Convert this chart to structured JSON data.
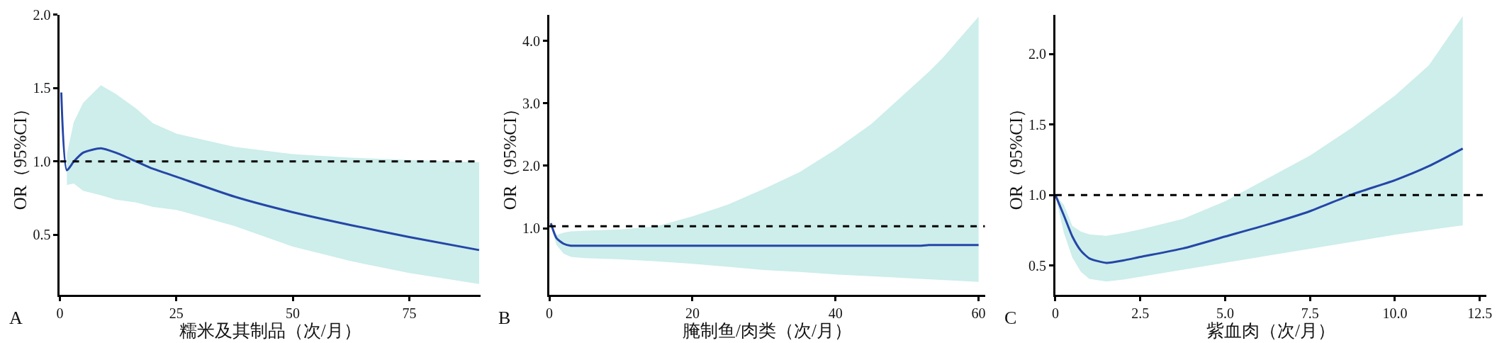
{
  "chart_data": [
    {
      "type": "line",
      "xlabel": "糯米及其制品（次/月）",
      "ylabel": "OR（95%CI）",
      "annotations": [
        "A"
      ],
      "xlim": [
        0,
        90.3
      ],
      "xticks": [
        0,
        25,
        50,
        75
      ],
      "ylim": [
        0.09,
        2.0
      ],
      "yticks": [
        {
          "value": 0.5,
          "label": "0.5"
        },
        {
          "value": 1.0,
          "label": "1.0"
        },
        {
          "value": 1.5,
          "label": "1.5"
        },
        {
          "value": 2.0,
          "label": "2.0"
        }
      ],
      "marker": "none",
      "line_style": "solid",
      "ref_lines": [
        {
          "axis": "y",
          "value": 1.0,
          "color": "#000000",
          "line_style": "dashed"
        }
      ],
      "series": [
        {
          "color": "#2546a6",
          "x": [
            0.3,
            1.5,
            3,
            5,
            8.8,
            12,
            16.4,
            20,
            25,
            37.5,
            50,
            62.5,
            75,
            90
          ],
          "values": [
            1.47,
            0.94,
            1.0,
            1.06,
            1.09,
            1.06,
            1.0,
            0.95,
            0.896,
            0.76,
            0.654,
            0.566,
            0.485,
            0.396
          ],
          "upper": [
            null,
            1.05,
            1.27,
            1.4,
            1.52,
            1.46,
            1.36,
            1.26,
            1.19,
            1.1,
            1.05,
            1.026,
            1.01,
            0.995
          ],
          "lower": [
            null,
            0.84,
            0.85,
            0.8,
            0.77,
            0.74,
            0.72,
            0.69,
            0.67,
            0.56,
            0.42,
            0.32,
            0.24,
            0.165
          ]
        }
      ]
    },
    {
      "type": "line",
      "xlabel": "腌制鱼/肉类（次/月）",
      "ylabel": "OR（95%CI）",
      "annotations": [
        "B"
      ],
      "xlim": [
        0,
        60.9
      ],
      "xticks": [
        0,
        20,
        40,
        60
      ],
      "ylim": [
        -0.07,
        4.42
      ],
      "yticks": [
        {
          "value": 1.0,
          "label": "1.0"
        },
        {
          "value": 2.0,
          "label": "2.0"
        },
        {
          "value": 3.0,
          "label": "3.0"
        },
        {
          "value": 4.0,
          "label": "4.0"
        }
      ],
      "marker": "none",
      "line_style": "solid",
      "ref_lines": [
        {
          "axis": "y",
          "value": 1.03,
          "color": "#000000",
          "line_style": "dashed"
        }
      ],
      "series": [
        {
          "color": "#2546a6",
          "x": [
            0.2,
            1,
            2,
            3,
            5,
            10,
            15,
            20,
            25,
            30,
            35,
            40,
            45,
            50,
            52,
            53,
            55,
            60
          ],
          "values": [
            1.08,
            0.84,
            0.75,
            0.72,
            0.72,
            0.72,
            0.72,
            0.72,
            0.72,
            0.72,
            0.72,
            0.72,
            0.72,
            0.72,
            0.72,
            0.73,
            0.73,
            0.73
          ],
          "upper": [
            1.1,
            0.89,
            0.93,
            0.95,
            0.96,
            0.98,
            1.03,
            1.19,
            1.38,
            1.63,
            1.9,
            2.26,
            2.67,
            3.19,
            3.4,
            3.5,
            3.73,
            4.39
          ],
          "lower": [
            1.05,
            0.73,
            0.59,
            0.54,
            0.52,
            0.5,
            0.47,
            0.43,
            0.38,
            0.33,
            0.3,
            0.26,
            0.23,
            0.2,
            0.19,
            0.19,
            0.17,
            0.14
          ]
        }
      ]
    },
    {
      "type": "line",
      "xlabel": "紫血肉（次/月）",
      "ylabel": "OR（95%CI）",
      "annotations": [
        "C"
      ],
      "xlim": [
        0,
        12.7
      ],
      "xticks": [
        0,
        {
          "value": 2.5,
          "label": "2.5"
        },
        {
          "value": 5.0,
          "label": "5.0"
        },
        {
          "value": 7.5,
          "label": "7.5"
        },
        {
          "value": 10.0,
          "label": "10.0"
        },
        {
          "value": 12.5,
          "label": "12.5"
        }
      ],
      "ylim": [
        0.29,
        2.28
      ],
      "yticks": [
        {
          "value": 0.5,
          "label": "0.5"
        },
        {
          "value": 1.0,
          "label": "1.0"
        },
        {
          "value": 1.5,
          "label": "1.5"
        },
        {
          "value": 2.0,
          "label": "2.0"
        }
      ],
      "marker": "none",
      "line_style": "solid",
      "ref_lines": [
        {
          "axis": "y",
          "value": 1.0,
          "color": "#000000",
          "line_style": "dashed"
        }
      ],
      "series": [
        {
          "color": "#2546a6",
          "x": [
            0,
            0.25,
            0.5,
            0.75,
            1,
            1.5,
            2,
            2.5,
            3.75,
            5,
            6.25,
            7.5,
            8.75,
            10,
            11,
            12
          ],
          "values": [
            1.0,
            0.855,
            0.705,
            0.605,
            0.55,
            0.518,
            0.535,
            0.56,
            0.62,
            0.705,
            0.79,
            0.885,
            1.005,
            1.105,
            1.205,
            1.33
          ],
          "upper": [
            1.0,
            0.93,
            0.78,
            0.74,
            0.72,
            0.71,
            0.73,
            0.755,
            0.83,
            0.955,
            1.118,
            1.28,
            1.48,
            1.705,
            1.92,
            2.27
          ],
          "lower": [
            1.0,
            0.73,
            0.555,
            0.455,
            0.405,
            0.385,
            0.4,
            0.418,
            0.47,
            0.518,
            0.568,
            0.618,
            0.668,
            0.718,
            0.75,
            0.785
          ]
        }
      ]
    }
  ]
}
